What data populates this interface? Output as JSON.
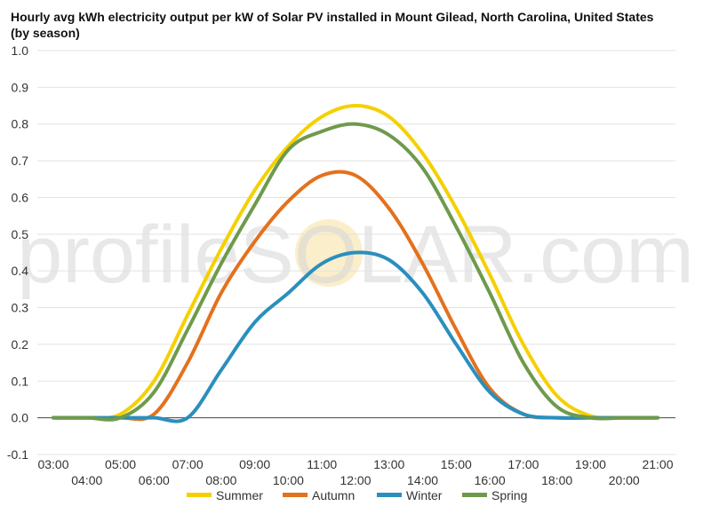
{
  "chart_data": {
    "type": "line",
    "title": "Hourly avg kWh electricity output per kW of Solar PV installed in Mount Gilead, North Carolina, United States (by season)",
    "xlabel": "",
    "ylabel": "",
    "ylim": [
      -0.1,
      1.0
    ],
    "yticks": [
      "-0.1",
      "0.0",
      "0.1",
      "0.2",
      "0.3",
      "0.4",
      "0.5",
      "0.6",
      "0.7",
      "0.8",
      "0.9",
      "1.0"
    ],
    "xticks_top": [
      "03:00",
      "05:00",
      "07:00",
      "09:00",
      "11:00",
      "13:00",
      "15:00",
      "17:00",
      "19:00",
      "21:00"
    ],
    "xticks_bottom": [
      "04:00",
      "06:00",
      "08:00",
      "10:00",
      "12:00",
      "14:00",
      "16:00",
      "18:00",
      "20:00"
    ],
    "x": [
      "03:00",
      "04:00",
      "05:00",
      "06:00",
      "07:00",
      "08:00",
      "09:00",
      "10:00",
      "11:00",
      "12:00",
      "13:00",
      "14:00",
      "15:00",
      "16:00",
      "17:00",
      "18:00",
      "19:00",
      "20:00",
      "21:00"
    ],
    "grid": true,
    "legend": "bottom",
    "series": [
      {
        "name": "Summer",
        "color": "#f5d000",
        "values": [
          0.0,
          0.0,
          0.01,
          0.1,
          0.28,
          0.46,
          0.62,
          0.74,
          0.82,
          0.85,
          0.82,
          0.72,
          0.57,
          0.39,
          0.2,
          0.06,
          0.005,
          0.0,
          0.0
        ]
      },
      {
        "name": "Autumn",
        "color": "#e4711d",
        "values": [
          0.0,
          0.0,
          0.0,
          0.01,
          0.15,
          0.34,
          0.48,
          0.59,
          0.66,
          0.66,
          0.57,
          0.42,
          0.24,
          0.08,
          0.01,
          0.0,
          0.0,
          0.0,
          0.0
        ]
      },
      {
        "name": "Winter",
        "color": "#2a8fbd",
        "values": [
          0.0,
          0.0,
          0.0,
          0.0,
          0.0,
          0.13,
          0.26,
          0.34,
          0.42,
          0.45,
          0.43,
          0.34,
          0.2,
          0.07,
          0.01,
          0.0,
          0.0,
          0.0,
          0.0
        ]
      },
      {
        "name": "Spring",
        "color": "#6e9a4c",
        "values": [
          0.0,
          0.0,
          0.0,
          0.07,
          0.24,
          0.42,
          0.58,
          0.73,
          0.78,
          0.8,
          0.77,
          0.68,
          0.52,
          0.34,
          0.15,
          0.03,
          0.0,
          0.0,
          0.0
        ]
      }
    ],
    "watermark": "profileSOLAR.com"
  }
}
